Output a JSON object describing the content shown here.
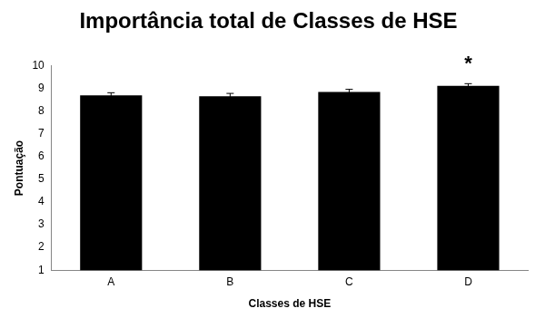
{
  "chart_data": {
    "type": "bar",
    "title": "Importância total de Classes de HSE",
    "x_label": "Classes de HSE",
    "y_label": "Pontuação",
    "categories": [
      "A",
      "B",
      "C",
      "D"
    ],
    "values": [
      8.7,
      8.66,
      8.85,
      9.12
    ],
    "errors": [
      0.12,
      0.13,
      0.12,
      0.1
    ],
    "color": "#000000",
    "ylim": [
      1,
      10
    ],
    "yticks": [
      1,
      2,
      3,
      4,
      5,
      6,
      7,
      8,
      9,
      10
    ],
    "grid": false,
    "annotations": [
      {
        "text": "*",
        "x": "D"
      }
    ]
  }
}
